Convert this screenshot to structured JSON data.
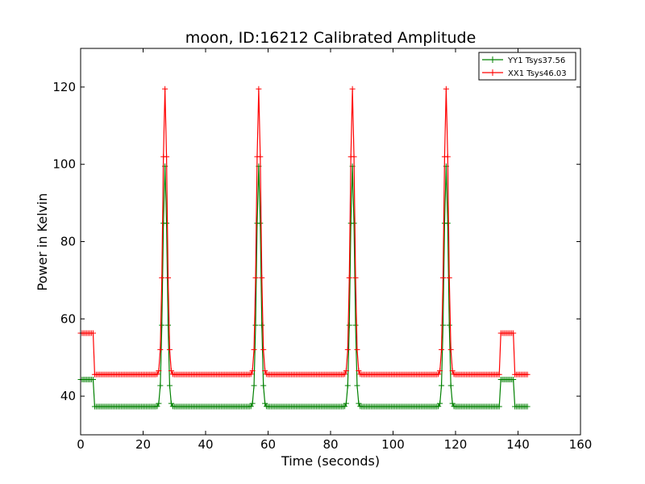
{
  "chart_data": {
    "type": "line",
    "title": "moon, ID:16212 Calibrated Amplitude",
    "xlabel": "Time (seconds)",
    "ylabel": "Power in Kelvin",
    "xlim": [
      0,
      160
    ],
    "ylim": [
      30,
      130
    ],
    "xticks": [
      0,
      20,
      40,
      60,
      80,
      100,
      120,
      140,
      160
    ],
    "yticks": [
      40,
      60,
      80,
      100,
      120
    ],
    "xtick_labels": [
      "0",
      "20",
      "40",
      "60",
      "80",
      "100",
      "120",
      "140",
      "160"
    ],
    "ytick_labels": [
      "40",
      "60",
      "80",
      "100",
      "120"
    ],
    "grid": false,
    "legend_position": "top-right",
    "marker": "+",
    "series": [
      {
        "name": "YY1 Tsys37.56",
        "color": "#008000",
        "baseline": 37.3,
        "off_source_level": 44.3,
        "off_source_windows": [
          [
            0,
            4.2
          ],
          [
            134.5,
            138.5
          ]
        ],
        "peaks": [
          {
            "x": 27,
            "y": 99.5
          },
          {
            "x": 57,
            "y": 99.5
          },
          {
            "x": 87,
            "y": 99.5
          },
          {
            "x": 117,
            "y": 99.5
          }
        ],
        "peak_halfwidth_s": 1.6,
        "x_end": 143
      },
      {
        "name": "XX1 Tsys46.03",
        "color": "#ff0000",
        "baseline": 45.6,
        "off_source_level": 56.3,
        "off_source_windows": [
          [
            0,
            4.2
          ],
          [
            134.5,
            138.5
          ]
        ],
        "peaks": [
          {
            "x": 27,
            "y": 119.5
          },
          {
            "x": 57,
            "y": 119.5
          },
          {
            "x": 87,
            "y": 119.5
          },
          {
            "x": 117,
            "y": 119.5
          }
        ],
        "peak_halfwidth_s": 1.6,
        "x_end": 143
      }
    ]
  }
}
